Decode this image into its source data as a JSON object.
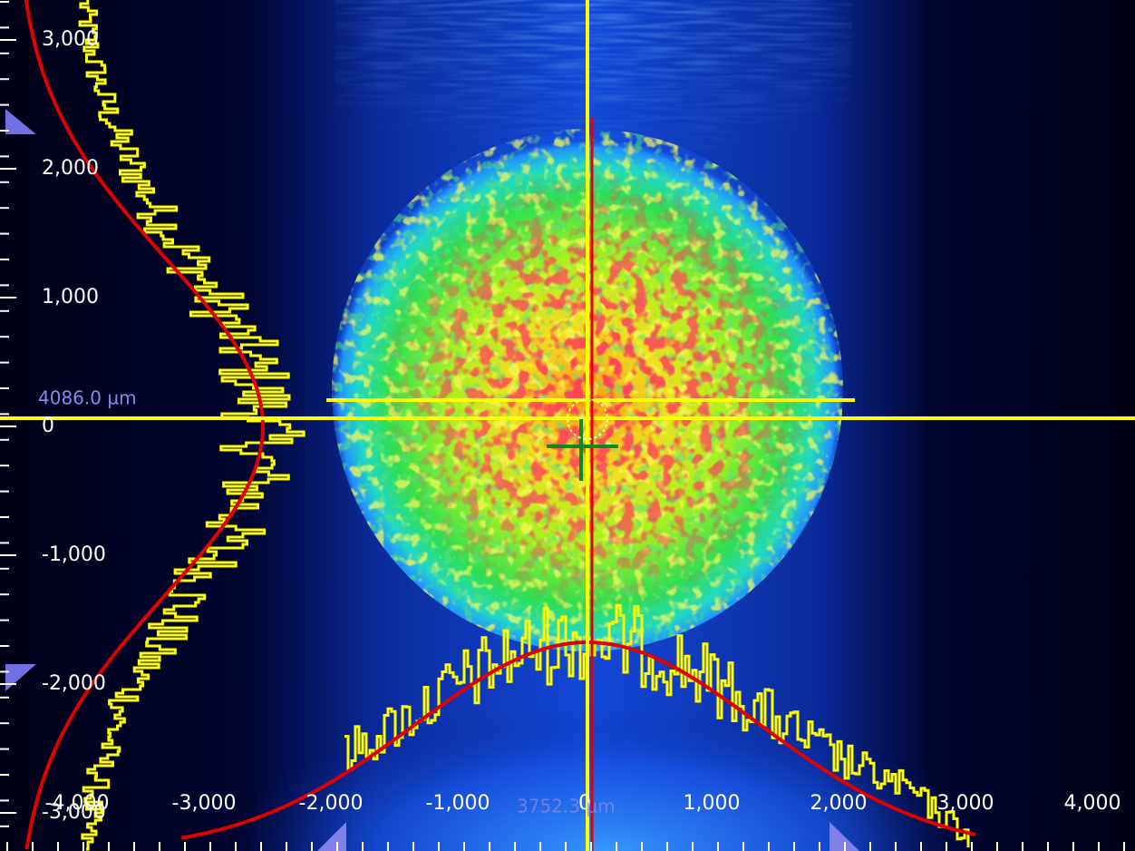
{
  "x_axis": {
    "tick_labels": [
      "-4,000",
      "-3,000",
      "-2,000",
      "-1,000",
      "0",
      "1,000",
      "2,000",
      "3,000",
      "4,000"
    ]
  },
  "y_axis": {
    "tick_labels": [
      "3,000",
      "2,000",
      "1,000",
      "0",
      "-1,000",
      "-2,000",
      "-3,000"
    ]
  },
  "readouts": {
    "y_profile_width": "4086.0 µm",
    "x_profile_width": "3752.3 µm"
  }
}
